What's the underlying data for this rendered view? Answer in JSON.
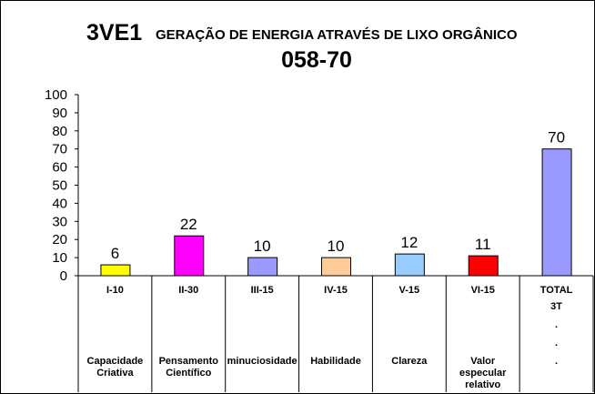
{
  "chart_data": {
    "type": "bar",
    "title": "3VE1",
    "subtitle": "GERAÇÃO DE ENERGIA ATRAVÉS DE LIXO ORGÂNICO",
    "title_line2": "058-70",
    "categories": [
      "I-10",
      "II-30",
      "III-15",
      "IV-15",
      "V-15",
      "VI-15",
      "TOTAL"
    ],
    "descriptions": [
      [
        "Capacidade",
        "Criativa"
      ],
      [
        "Pensamento",
        "Científico"
      ],
      [
        "minuciosidade"
      ],
      [
        "Habilidade"
      ],
      [
        "Clareza"
      ],
      [
        "Valor",
        "especular",
        "relativo"
      ],
      [
        "."
      ]
    ],
    "total_extra": [
      "3T",
      ".",
      "."
    ],
    "values": [
      6,
      22,
      10,
      10,
      12,
      11,
      70
    ],
    "colors": [
      "#ffff00",
      "#ff00ff",
      "#9999ff",
      "#ffcc99",
      "#99ccff",
      "#ff0000",
      "#9999ff"
    ],
    "ylim": [
      0,
      100
    ],
    "yticks": [
      0,
      10,
      20,
      30,
      40,
      50,
      60,
      70,
      80,
      90,
      100
    ],
    "xlabel": "",
    "ylabel": "",
    "grid": false,
    "legend": "none"
  }
}
